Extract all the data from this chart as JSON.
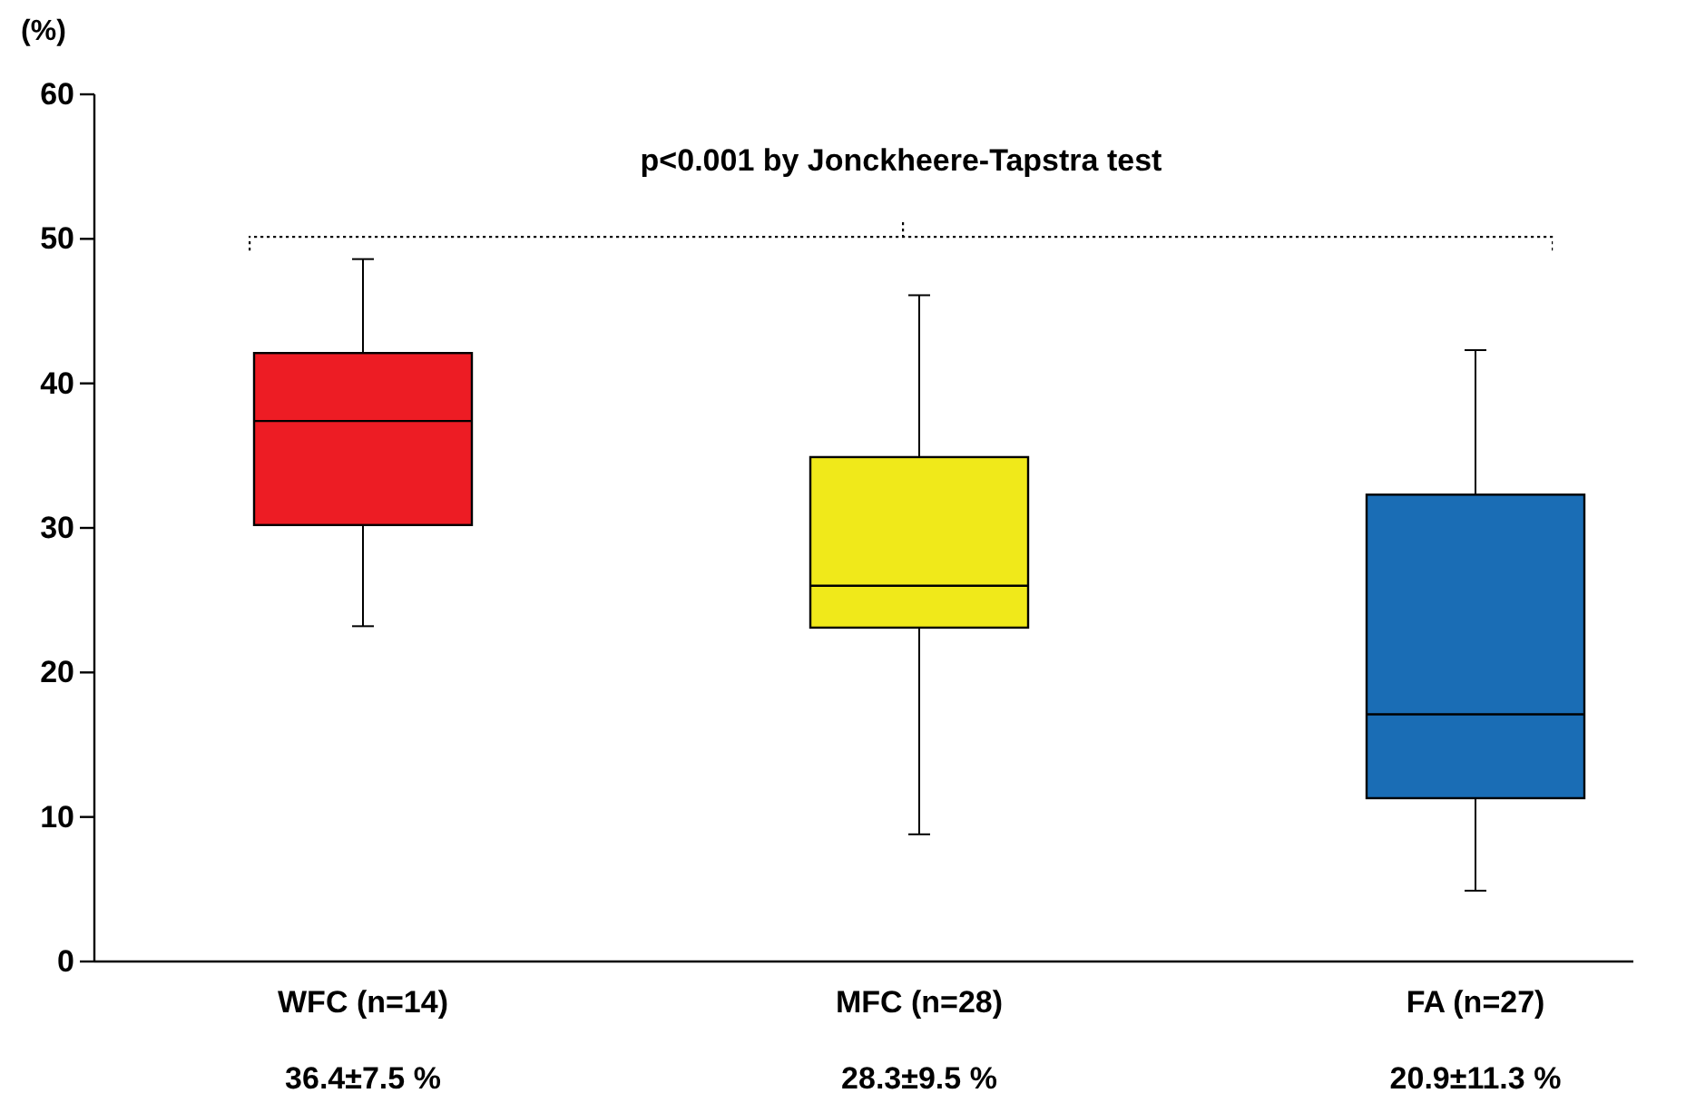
{
  "chart_data": {
    "type": "box",
    "ylabel": "(%)",
    "categories": [
      "WFC (n=14)",
      "MFC (n=28)",
      "FA (n=27)"
    ],
    "ylim": [
      0,
      60
    ],
    "yticks": [
      0,
      10,
      20,
      30,
      40,
      50,
      60
    ],
    "grid": false,
    "colors": [
      "#ed1c24",
      "#f0e91a",
      "#1a6db5"
    ],
    "boxes": [
      {
        "low": 23.2,
        "q1": 30.2,
        "median": 37.4,
        "q3": 42.1,
        "high": 48.6
      },
      {
        "low": 8.8,
        "q1": 23.1,
        "median": 26.0,
        "q3": 34.9,
        "high": 46.1
      },
      {
        "low": 4.9,
        "q1": 11.3,
        "median": 17.1,
        "q3": 32.3,
        "high": 42.3
      }
    ],
    "annotations": [
      "p<0.001 by Jonckheere-Tapstra test",
      "36.4±7.5 %",
      "28.3±9.5 %",
      "20.9±11.3 %"
    ]
  }
}
